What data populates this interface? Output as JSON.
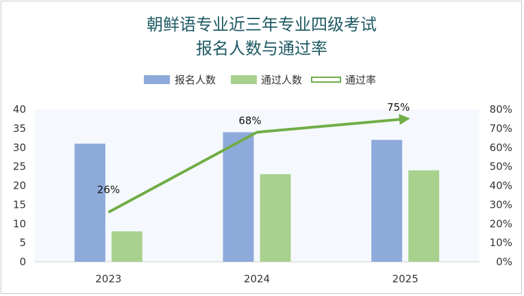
{
  "chart_data": {
    "type": "bar",
    "title_lines": [
      "朝鲜语专业近三年专业四级考试",
      "报名人数与通过率"
    ],
    "categories": [
      "2023",
      "2024",
      "2025"
    ],
    "series": [
      {
        "name": "报名人数",
        "type": "bar",
        "axis": "left",
        "color": "#8eaadb",
        "values": [
          31,
          34,
          32
        ]
      },
      {
        "name": "通过人数",
        "type": "bar",
        "axis": "left",
        "color": "#a9d18e",
        "values": [
          8,
          23,
          24
        ]
      },
      {
        "name": "通过率",
        "type": "line",
        "axis": "right",
        "color": "#70ad47",
        "values": [
          0.26,
          0.68,
          0.75
        ],
        "labels": [
          "26%",
          "68%",
          "75%"
        ]
      }
    ],
    "y_left": {
      "min": 0,
      "max": 40,
      "step": 5,
      "ticks": [
        "0",
        "5",
        "10",
        "15",
        "20",
        "25",
        "30",
        "35",
        "40"
      ]
    },
    "y_right": {
      "min": 0,
      "max": 0.8,
      "step": 0.1,
      "ticks": [
        "0%",
        "10%",
        "20%",
        "30%",
        "40%",
        "50%",
        "60%",
        "70%",
        "80%"
      ]
    },
    "legend_position": "top",
    "plot_background": "#f5f9fd"
  }
}
